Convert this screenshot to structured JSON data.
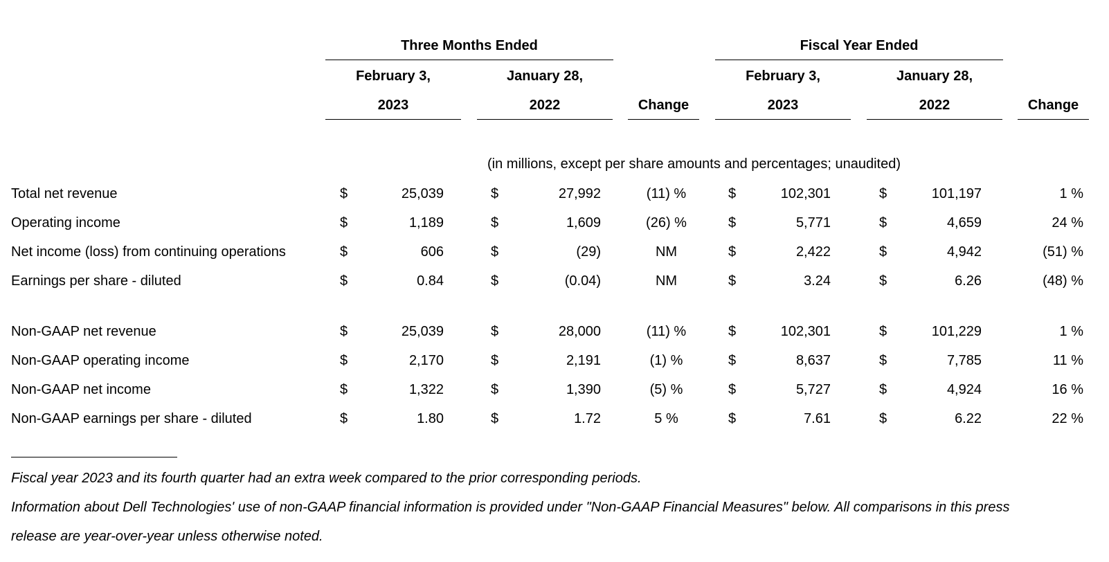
{
  "header": {
    "three_months": "Three Months Ended",
    "fiscal_year": "Fiscal Year Ended",
    "col_feb": "February 3,",
    "col_jan": "January 28,",
    "year_2023": "2023",
    "year_2022": "2022",
    "change": "Change"
  },
  "units_note": "(in millions, except per share amounts and percentages; unaudited)",
  "currency": "$",
  "rows": [
    {
      "label": "Total net revenue",
      "q23": "25,039",
      "q22": "27,992",
      "qchg": "(11) %",
      "f23": "102,301",
      "f22": "101,197",
      "fchg": "1 %"
    },
    {
      "label": "Operating income",
      "q23": "1,189",
      "q22": "1,609",
      "qchg": "(26) %",
      "f23": "5,771",
      "f22": "4,659",
      "fchg": "24 %"
    },
    {
      "label": "Net income (loss) from continuing operations",
      "q23": "606",
      "q22": "(29)",
      "qchg": "NM",
      "f23": "2,422",
      "f22": "4,942",
      "fchg": "(51) %"
    },
    {
      "label": "Earnings per share - diluted",
      "q23": "0.84",
      "q22": "(0.04)",
      "qchg": "NM",
      "f23": "3.24",
      "f22": "6.26",
      "fchg": "(48) %"
    },
    {
      "label": "Non-GAAP net revenue",
      "q23": "25,039",
      "q22": "28,000",
      "qchg": "(11) %",
      "f23": "102,301",
      "f22": "101,229",
      "fchg": "1 %"
    },
    {
      "label": "Non-GAAP operating income",
      "q23": "2,170",
      "q22": "2,191",
      "qchg": "(1) %",
      "f23": "8,637",
      "f22": "7,785",
      "fchg": "11 %"
    },
    {
      "label": "Non-GAAP net income",
      "q23": "1,322",
      "q22": "1,390",
      "qchg": "(5) %",
      "f23": "5,727",
      "f22": "4,924",
      "fchg": "16 %"
    },
    {
      "label": "Non-GAAP earnings per share - diluted",
      "q23": "1.80",
      "q22": "1.72",
      "qchg": "5 %",
      "f23": "7.61",
      "f22": "6.22",
      "fchg": "22 %"
    }
  ],
  "footnotes": {
    "note1": "Fiscal year 2023 and its fourth quarter had an extra week compared to the prior corresponding periods.",
    "note2": "Information about Dell Technologies' use of non-GAAP financial information is provided under \"Non-GAAP Financial Measures\" below. All comparisons in this press",
    "note3": "release are year-over-year unless otherwise noted."
  }
}
